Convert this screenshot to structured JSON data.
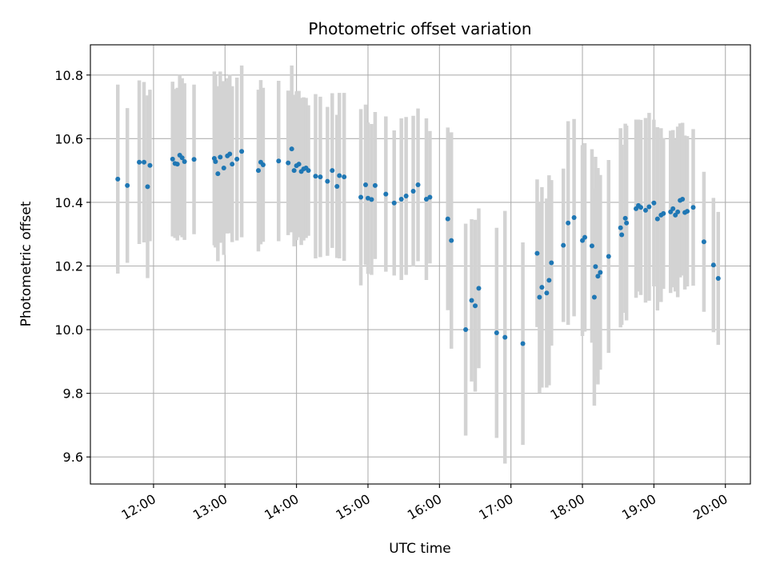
{
  "chart_data": {
    "type": "scatter",
    "title": "Photometric offset variation",
    "xlabel": "UTC time",
    "ylabel": "Photometric offset",
    "xlim": [
      "11:07",
      "20:21"
    ],
    "ylim": [
      9.515,
      10.895
    ],
    "x_ticks": [
      "12:00",
      "13:00",
      "14:00",
      "15:00",
      "16:00",
      "17:00",
      "18:00",
      "19:00",
      "20:00"
    ],
    "y_ticks": [
      9.6,
      9.8,
      10.0,
      10.2,
      10.4,
      10.6,
      10.8
    ],
    "y_tick_labels": [
      "9.6",
      "9.8",
      "10.0",
      "10.2",
      "10.4",
      "10.6",
      "10.8"
    ],
    "grid": true,
    "colors": {
      "points": "#1f77b4",
      "error_bars": "#d3d3d3",
      "grid": "#b0b0b0"
    },
    "series": [
      {
        "marker": "point",
        "points": [
          {
            "x": "11:30",
            "y": 10.473,
            "err": 0.297
          },
          {
            "x": "11:38",
            "y": 10.453,
            "err": 0.243
          },
          {
            "x": "11:48",
            "y": 10.526,
            "err": 0.257
          },
          {
            "x": "11:52",
            "y": 10.526,
            "err": 0.252
          },
          {
            "x": "11:55",
            "y": 10.449,
            "err": 0.287
          },
          {
            "x": "11:57",
            "y": 10.516,
            "err": 0.238
          },
          {
            "x": "12:16",
            "y": 10.536,
            "err": 0.243
          },
          {
            "x": "12:18",
            "y": 10.522,
            "err": 0.234
          },
          {
            "x": "12:20",
            "y": 10.52,
            "err": 0.24
          },
          {
            "x": "12:22",
            "y": 10.548,
            "err": 0.252
          },
          {
            "x": "12:24",
            "y": 10.54,
            "err": 0.25
          },
          {
            "x": "12:26",
            "y": 10.528,
            "err": 0.246
          },
          {
            "x": "12:34",
            "y": 10.535,
            "err": 0.235
          },
          {
            "x": "12:51",
            "y": 10.538,
            "err": 0.273
          },
          {
            "x": "12:52",
            "y": 10.528,
            "err": 0.27
          },
          {
            "x": "12:54",
            "y": 10.49,
            "err": 0.275
          },
          {
            "x": "12:56",
            "y": 10.542,
            "err": 0.269
          },
          {
            "x": "12:59",
            "y": 10.508,
            "err": 0.273
          },
          {
            "x": "13:02",
            "y": 10.546,
            "err": 0.244
          },
          {
            "x": "13:04",
            "y": 10.552,
            "err": 0.249
          },
          {
            "x": "13:06",
            "y": 10.52,
            "err": 0.245
          },
          {
            "x": "13:10",
            "y": 10.536,
            "err": 0.256
          },
          {
            "x": "13:14",
            "y": 10.56,
            "err": 0.27
          },
          {
            "x": "13:28",
            "y": 10.5,
            "err": 0.254
          },
          {
            "x": "13:30",
            "y": 10.526,
            "err": 0.258
          },
          {
            "x": "13:32",
            "y": 10.518,
            "err": 0.242
          },
          {
            "x": "13:45",
            "y": 10.53,
            "err": 0.252
          },
          {
            "x": "13:53",
            "y": 10.524,
            "err": 0.227
          },
          {
            "x": "13:56",
            "y": 10.568,
            "err": 0.262
          },
          {
            "x": "13:58",
            "y": 10.5,
            "err": 0.238
          },
          {
            "x": "14:00",
            "y": 10.515,
            "err": 0.234
          },
          {
            "x": "14:02",
            "y": 10.52,
            "err": 0.23
          },
          {
            "x": "14:04",
            "y": 10.497,
            "err": 0.231
          },
          {
            "x": "14:06",
            "y": 10.505,
            "err": 0.225
          },
          {
            "x": "14:08",
            "y": 10.508,
            "err": 0.22
          },
          {
            "x": "14:10",
            "y": 10.5,
            "err": 0.205
          },
          {
            "x": "14:16",
            "y": 10.482,
            "err": 0.258
          },
          {
            "x": "14:20",
            "y": 10.48,
            "err": 0.252
          },
          {
            "x": "14:26",
            "y": 10.466,
            "err": 0.234
          },
          {
            "x": "14:30",
            "y": 10.5,
            "err": 0.243
          },
          {
            "x": "14:34",
            "y": 10.45,
            "err": 0.225
          },
          {
            "x": "14:36",
            "y": 10.484,
            "err": 0.26
          },
          {
            "x": "14:40",
            "y": 10.48,
            "err": 0.264
          },
          {
            "x": "14:54",
            "y": 10.416,
            "err": 0.277
          },
          {
            "x": "14:58",
            "y": 10.455,
            "err": 0.252
          },
          {
            "x": "15:00",
            "y": 10.413,
            "err": 0.238
          },
          {
            "x": "15:03",
            "y": 10.409,
            "err": 0.237
          },
          {
            "x": "15:06",
            "y": 10.453,
            "err": 0.231
          },
          {
            "x": "15:15",
            "y": 10.426,
            "err": 0.244
          },
          {
            "x": "15:22",
            "y": 10.398,
            "err": 0.228
          },
          {
            "x": "15:28",
            "y": 10.41,
            "err": 0.254
          },
          {
            "x": "15:32",
            "y": 10.42,
            "err": 0.248
          },
          {
            "x": "15:38",
            "y": 10.435,
            "err": 0.237
          },
          {
            "x": "15:42",
            "y": 10.455,
            "err": 0.24
          },
          {
            "x": "15:49",
            "y": 10.41,
            "err": 0.254
          },
          {
            "x": "15:52",
            "y": 10.416,
            "err": 0.208
          },
          {
            "x": "16:07",
            "y": 10.348,
            "err": 0.287
          },
          {
            "x": "16:10",
            "y": 10.28,
            "err": 0.34
          },
          {
            "x": "16:22",
            "y": 10.0,
            "err": 0.333
          },
          {
            "x": "16:27",
            "y": 10.092,
            "err": 0.255
          },
          {
            "x": "16:30",
            "y": 10.075,
            "err": 0.27
          },
          {
            "x": "16:33",
            "y": 10.13,
            "err": 0.251
          },
          {
            "x": "16:48",
            "y": 9.99,
            "err": 0.33
          },
          {
            "x": "16:55",
            "y": 9.976,
            "err": 0.397
          },
          {
            "x": "17:10",
            "y": 9.956,
            "err": 0.318
          },
          {
            "x": "17:22",
            "y": 10.24,
            "err": 0.232
          },
          {
            "x": "17:24",
            "y": 10.102,
            "err": 0.3
          },
          {
            "x": "17:26",
            "y": 10.133,
            "err": 0.315
          },
          {
            "x": "17:30",
            "y": 10.115,
            "err": 0.297
          },
          {
            "x": "17:32",
            "y": 10.155,
            "err": 0.33
          },
          {
            "x": "17:34",
            "y": 10.21,
            "err": 0.26
          },
          {
            "x": "17:44",
            "y": 10.265,
            "err": 0.241
          },
          {
            "x": "17:48",
            "y": 10.335,
            "err": 0.32
          },
          {
            "x": "17:53",
            "y": 10.352,
            "err": 0.31
          },
          {
            "x": "18:00",
            "y": 10.28,
            "err": 0.3
          },
          {
            "x": "18:02",
            "y": 10.29,
            "err": 0.296
          },
          {
            "x": "18:08",
            "y": 10.263,
            "err": 0.304
          },
          {
            "x": "18:10",
            "y": 10.102,
            "err": 0.341
          },
          {
            "x": "18:11",
            "y": 10.198,
            "err": 0.345
          },
          {
            "x": "18:13",
            "y": 10.168,
            "err": 0.34
          },
          {
            "x": "18:15",
            "y": 10.18,
            "err": 0.306
          },
          {
            "x": "18:22",
            "y": 10.23,
            "err": 0.303
          },
          {
            "x": "18:32",
            "y": 10.32,
            "err": 0.313
          },
          {
            "x": "18:33",
            "y": 10.298,
            "err": 0.283
          },
          {
            "x": "18:36",
            "y": 10.35,
            "err": 0.297
          },
          {
            "x": "18:37",
            "y": 10.335,
            "err": 0.306
          },
          {
            "x": "18:45",
            "y": 10.38,
            "err": 0.28
          },
          {
            "x": "18:47",
            "y": 10.39,
            "err": 0.27
          },
          {
            "x": "18:49",
            "y": 10.384,
            "err": 0.275
          },
          {
            "x": "18:53",
            "y": 10.375,
            "err": 0.29
          },
          {
            "x": "18:56",
            "y": 10.386,
            "err": 0.295
          },
          {
            "x": "19:00",
            "y": 10.398,
            "err": 0.262
          },
          {
            "x": "19:03",
            "y": 10.348,
            "err": 0.288
          },
          {
            "x": "19:06",
            "y": 10.36,
            "err": 0.273
          },
          {
            "x": "19:08",
            "y": 10.365,
            "err": 0.237
          },
          {
            "x": "19:14",
            "y": 10.37,
            "err": 0.255
          },
          {
            "x": "19:16",
            "y": 10.38,
            "err": 0.247
          },
          {
            "x": "19:18",
            "y": 10.36,
            "err": 0.24
          },
          {
            "x": "19:20",
            "y": 10.37,
            "err": 0.268
          },
          {
            "x": "19:22",
            "y": 10.406,
            "err": 0.242
          },
          {
            "x": "19:24",
            "y": 10.41,
            "err": 0.24
          },
          {
            "x": "19:26",
            "y": 10.368,
            "err": 0.242
          },
          {
            "x": "19:28",
            "y": 10.372,
            "err": 0.236
          },
          {
            "x": "19:33",
            "y": 10.384,
            "err": 0.246
          },
          {
            "x": "19:42",
            "y": 10.276,
            "err": 0.22
          },
          {
            "x": "19:50",
            "y": 10.203,
            "err": 0.211
          },
          {
            "x": "19:54",
            "y": 10.161,
            "err": 0.209
          }
        ]
      }
    ]
  }
}
